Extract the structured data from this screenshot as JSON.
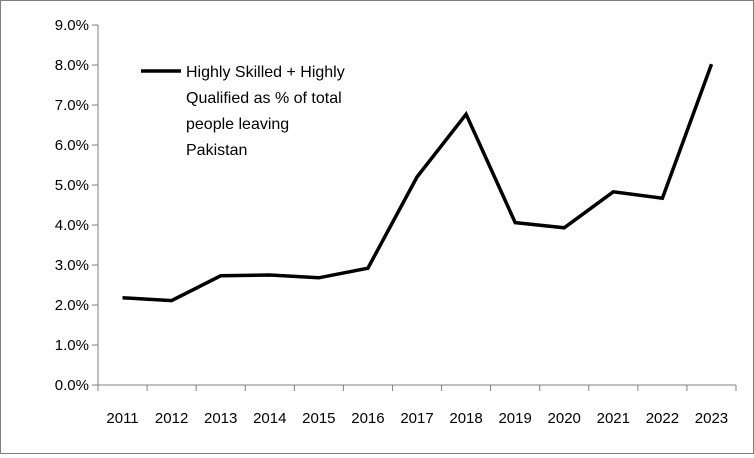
{
  "chart_data": {
    "type": "line",
    "title": "",
    "xlabel": "",
    "ylabel": "",
    "categories": [
      "2011",
      "2012",
      "2013",
      "2014",
      "2015",
      "2016",
      "2017",
      "2018",
      "2019",
      "2020",
      "2021",
      "2022",
      "2023"
    ],
    "series": [
      {
        "name": "Highly Skilled + Highly Qualified as % of total people leaving Pakistan",
        "legend_lines": [
          "Highly Skilled + Highly",
          "Qualified as % of total",
          "people leaving",
          "Pakistan"
        ],
        "values": [
          2.18,
          2.11,
          2.73,
          2.75,
          2.68,
          2.92,
          5.2,
          6.77,
          4.06,
          3.93,
          4.83,
          4.67,
          8.02
        ],
        "color": "#000000"
      }
    ],
    "y_ticks": [
      "0.0%",
      "1.0%",
      "2.0%",
      "3.0%",
      "4.0%",
      "5.0%",
      "6.0%",
      "7.0%",
      "8.0%",
      "9.0%"
    ],
    "ylim": [
      0,
      9
    ],
    "grid": false,
    "legend_position": "top-left"
  }
}
